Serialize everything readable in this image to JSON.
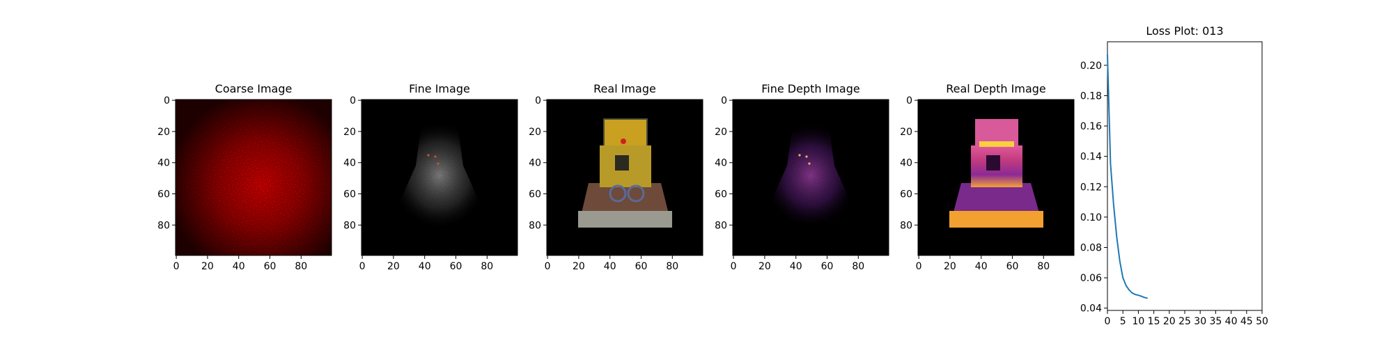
{
  "panels": [
    {
      "title": "Coarse Image",
      "xticks": [
        "0",
        "20",
        "40",
        "60",
        "80"
      ],
      "yticks": [
        "0",
        "20",
        "40",
        "60",
        "80"
      ],
      "palette": "red",
      "content": "noisy red intensity map, brighter in the center"
    },
    {
      "title": "Fine Image",
      "xticks": [
        "0",
        "20",
        "40",
        "60",
        "80"
      ],
      "yticks": [
        "0",
        "20",
        "40",
        "60",
        "80"
      ],
      "palette": "gray",
      "content": "faint gray silhouette with a few colored speckles"
    },
    {
      "title": "Real Image",
      "xticks": [
        "0",
        "20",
        "40",
        "60",
        "80"
      ],
      "yticks": [
        "0",
        "20",
        "40",
        "60",
        "80"
      ],
      "palette": "photo",
      "content": "yellow toy bulldozer photograph"
    },
    {
      "title": "Fine Depth Image",
      "xticks": [
        "0",
        "20",
        "40",
        "60",
        "80"
      ],
      "yticks": [
        "0",
        "20",
        "40",
        "60",
        "80"
      ],
      "palette": "inferno",
      "content": "dim purple depth silhouette"
    },
    {
      "title": "Real Depth Image",
      "xticks": [
        "0",
        "20",
        "40",
        "60",
        "80"
      ],
      "yticks": [
        "0",
        "20",
        "40",
        "60",
        "80"
      ],
      "palette": "inferno",
      "content": "bright magenta-orange bulldozer depth map"
    }
  ],
  "chart_data": {
    "type": "line",
    "title": "Loss Plot: 013",
    "xlim": [
      0,
      50
    ],
    "ylim": [
      0.0385,
      0.2155
    ],
    "xticks": [
      "0",
      "5",
      "10",
      "15",
      "20",
      "25",
      "30",
      "35",
      "40",
      "45",
      "50"
    ],
    "yticks": [
      "0.04",
      "0.06",
      "0.08",
      "0.10",
      "0.12",
      "0.14",
      "0.16",
      "0.18",
      "0.20"
    ],
    "grid": false,
    "series": [
      {
        "color": "#1f77b4",
        "x": [
          0,
          1,
          2,
          3,
          4,
          5,
          6,
          7,
          8,
          9,
          10,
          11,
          12,
          13
        ],
        "y": [
          0.207,
          0.135,
          0.108,
          0.087,
          0.071,
          0.06,
          0.055,
          0.052,
          0.05,
          0.049,
          0.0485,
          0.0478,
          0.047,
          0.0465
        ]
      }
    ]
  }
}
